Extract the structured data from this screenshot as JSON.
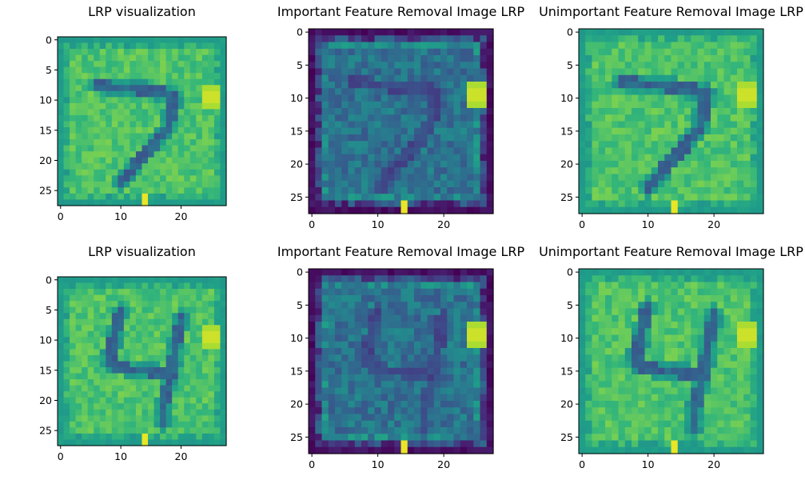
{
  "chart_data": [
    {
      "type": "heatmap",
      "title": "LRP visualization",
      "digit": "7",
      "variant": "lrp",
      "grid_size": 28,
      "colormap": "viridis",
      "xlim": [
        -0.5,
        27.5
      ],
      "ylim": [
        27.5,
        -0.5
      ],
      "xticks": [
        0,
        10,
        20
      ],
      "yticks": [
        0,
        5,
        10,
        15,
        20,
        25
      ],
      "grid": false
    },
    {
      "type": "heatmap",
      "title": "Important Feature Removal Image LRP",
      "digit": "7",
      "variant": "important_removed",
      "grid_size": 28,
      "colormap": "viridis",
      "xlim": [
        -0.5,
        27.5
      ],
      "ylim": [
        27.5,
        -0.5
      ],
      "xticks": [
        0,
        10,
        20
      ],
      "yticks": [
        0,
        5,
        10,
        15,
        20,
        25
      ],
      "grid": false
    },
    {
      "type": "heatmap",
      "title": "Unimportant Feature Removal Image LRP",
      "digit": "7",
      "variant": "unimportant_removed",
      "grid_size": 28,
      "colormap": "viridis",
      "xlim": [
        -0.5,
        27.5
      ],
      "ylim": [
        27.5,
        -0.5
      ],
      "xticks": [
        0,
        10,
        20
      ],
      "yticks": [
        0,
        5,
        10,
        15,
        20,
        25
      ],
      "grid": false
    },
    {
      "type": "heatmap",
      "title": "LRP visualization",
      "digit": "4",
      "variant": "lrp",
      "grid_size": 28,
      "colormap": "viridis",
      "xlim": [
        -0.5,
        27.5
      ],
      "ylim": [
        27.5,
        -0.5
      ],
      "xticks": [
        0,
        10,
        20
      ],
      "yticks": [
        0,
        5,
        10,
        15,
        20,
        25
      ],
      "grid": false
    },
    {
      "type": "heatmap",
      "title": "Important Feature Removal Image LRP",
      "digit": "4",
      "variant": "important_removed",
      "grid_size": 28,
      "colormap": "viridis",
      "xlim": [
        -0.5,
        27.5
      ],
      "ylim": [
        27.5,
        -0.5
      ],
      "xticks": [
        0,
        10,
        20
      ],
      "yticks": [
        0,
        5,
        10,
        15,
        20,
        25
      ],
      "grid": false
    },
    {
      "type": "heatmap",
      "title": "Unimportant Feature Removal Image LRP",
      "digit": "4",
      "variant": "unimportant_removed",
      "grid_size": 28,
      "colormap": "viridis",
      "xlim": [
        -0.5,
        27.5
      ],
      "ylim": [
        27.5,
        -0.5
      ],
      "xticks": [
        0,
        10,
        20
      ],
      "yticks": [
        0,
        5,
        10,
        15,
        20,
        25
      ],
      "grid": false
    }
  ]
}
